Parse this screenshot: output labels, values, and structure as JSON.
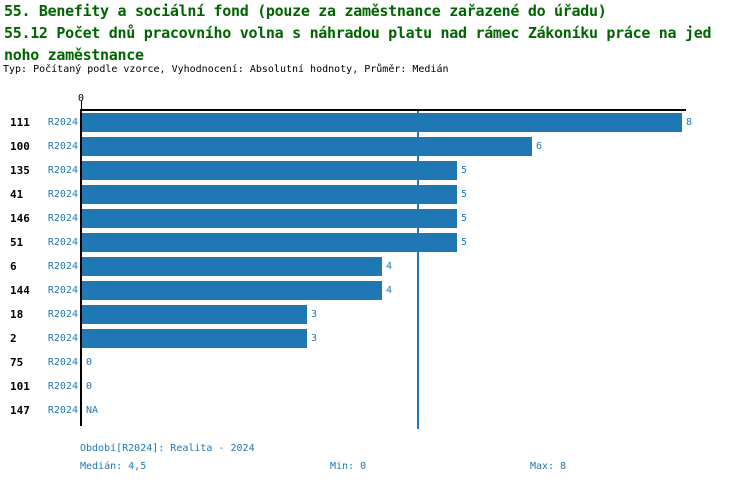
{
  "header": {
    "title_line1": "55. Benefity a sociální fond (pouze za zaměstnance zařazené do úřadu)",
    "title_line2": "55.12 Počet dnů pracovního volna s náhradou platu nad rámec Zákoníku práce na jed",
    "title_line3": "noho zaměstnance",
    "subtitle": "Typ: Počítaný podle vzorce, Vyhodnocení: Absolutní hodnoty, Průměr: Medián"
  },
  "chart_data": {
    "type": "bar",
    "orientation": "horizontal",
    "title": "55.12 Počet dnů pracovního volna s náhradou platu nad rámec Zákoníku práce na jednoho zaměstnance",
    "x_axis": {
      "tick_labels": [
        "0"
      ],
      "min": 0,
      "max": 8,
      "median_line_value": 4.5,
      "grid": false
    },
    "series_name": "R2024",
    "categories": [
      "111",
      "100",
      "135",
      "41",
      "146",
      "51",
      "6",
      "144",
      "18",
      "2",
      "75",
      "101",
      "147"
    ],
    "rows": [
      {
        "org": "111",
        "period": "R2024",
        "value": 8,
        "label": "8"
      },
      {
        "org": "100",
        "period": "R2024",
        "value": 6,
        "label": "6"
      },
      {
        "org": "135",
        "period": "R2024",
        "value": 5,
        "label": "5"
      },
      {
        "org": "41",
        "period": "R2024",
        "value": 5,
        "label": "5"
      },
      {
        "org": "146",
        "period": "R2024",
        "value": 5,
        "label": "5"
      },
      {
        "org": "51",
        "period": "R2024",
        "value": 5,
        "label": "5"
      },
      {
        "org": "6",
        "period": "R2024",
        "value": 4,
        "label": "4"
      },
      {
        "org": "144",
        "period": "R2024",
        "value": 4,
        "label": "4"
      },
      {
        "org": "18",
        "period": "R2024",
        "value": 3,
        "label": "3"
      },
      {
        "org": "2",
        "period": "R2024",
        "value": 3,
        "label": "3"
      },
      {
        "org": "75",
        "period": "R2024",
        "value": 0,
        "label": "0"
      },
      {
        "org": "101",
        "period": "R2024",
        "value": 0,
        "label": "0"
      },
      {
        "org": "147",
        "period": "R2024",
        "value": null,
        "label": "NA"
      }
    ],
    "legend_position": "none"
  },
  "footer": {
    "period_info": "Období[R2024]: Realita - 2024",
    "median": "Medián: 4,5",
    "min": "Min: 0",
    "max": "Max: 8"
  },
  "colors": {
    "title": "#006400",
    "bar": "#1f77b4",
    "blue_text": "#1f77b4",
    "axis": "#000000"
  }
}
